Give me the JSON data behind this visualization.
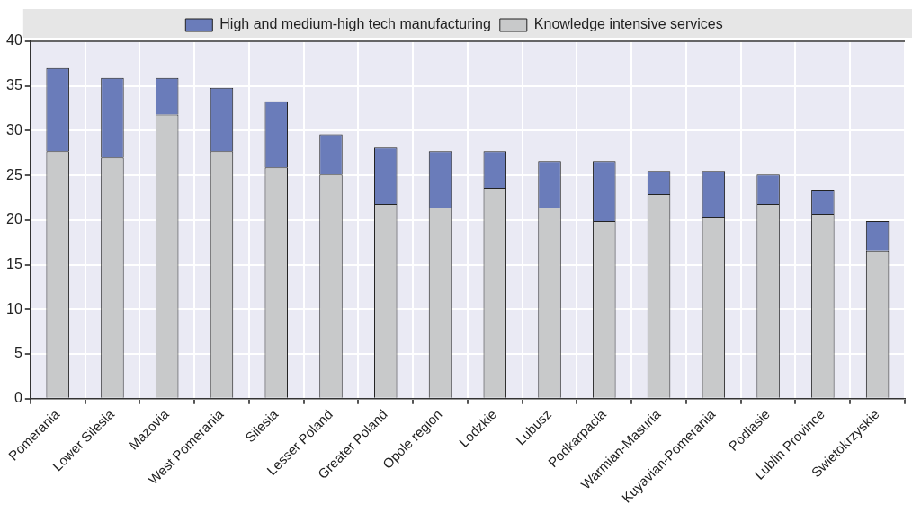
{
  "chart_data": {
    "type": "bar",
    "stacked": true,
    "categories": [
      "Pomerania",
      "Lower Silesia",
      "Mazovia",
      "West Pomerania",
      "Silesia",
      "Lesser Poland",
      "Greater Poland",
      "Opole region",
      "Lodzkie",
      "Lubusz",
      "Podkarpacia",
      "Warmian-Masuria",
      "Kuyavian-Pomerania",
      "Podlasie",
      "Lublin Province",
      "Swietokrzyskie"
    ],
    "series": [
      {
        "name": "Knowledge intensive services",
        "color": "#c8c9ca",
        "values": [
          27.7,
          27.0,
          31.8,
          27.7,
          25.9,
          25.1,
          21.8,
          21.4,
          23.6,
          21.4,
          19.9,
          22.9,
          20.3,
          21.8,
          20.7,
          16.6
        ]
      },
      {
        "name": "High and medium-high tech manufacturing",
        "color": "#6a7cba",
        "values": [
          9.3,
          8.9,
          4.1,
          7.1,
          7.4,
          4.5,
          6.3,
          6.3,
          4.1,
          5.2,
          6.7,
          2.6,
          5.2,
          3.3,
          2.6,
          3.3
        ]
      }
    ],
    "ylim": [
      0,
      40
    ],
    "yticks": [
      0,
      5,
      10,
      15,
      20,
      25,
      30,
      35,
      40
    ],
    "grid": true,
    "legend": "top"
  }
}
